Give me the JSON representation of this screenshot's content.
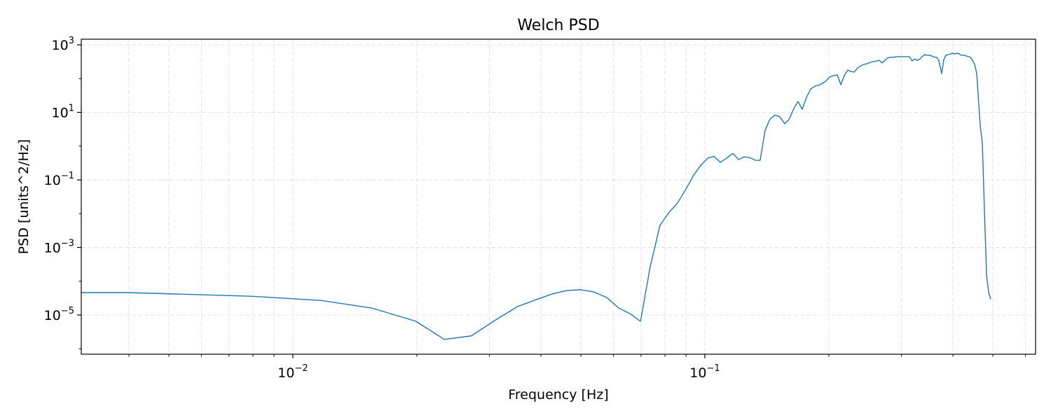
{
  "chart_data": {
    "type": "line",
    "title": "Welch PSD",
    "xlabel": "Frequency [Hz]",
    "ylabel": "PSD [units^2/Hz]",
    "xscale": "log",
    "yscale": "log",
    "grid": true,
    "color": "#1f77b4",
    "xlim": [
      0.003065,
      0.635
    ],
    "ylim": [
      6.9e-07,
      1466
    ],
    "xticks": [
      {
        "value": 0.01,
        "label": "10",
        "exponent": "−2"
      },
      {
        "value": 0.1,
        "label": "10",
        "exponent": "−1"
      }
    ],
    "xminorticks": [
      0.004,
      0.005,
      0.006,
      0.007,
      0.008,
      0.009,
      0.02,
      0.03,
      0.04,
      0.05,
      0.06,
      0.07,
      0.08,
      0.09,
      0.2,
      0.3,
      0.4,
      0.5,
      0.6
    ],
    "yticks": [
      {
        "value": 1e-05,
        "label": "10",
        "exponent": "−5"
      },
      {
        "value": 0.001,
        "label": "10",
        "exponent": "−3"
      },
      {
        "value": 0.1,
        "label": "10",
        "exponent": "−1"
      },
      {
        "value": 10,
        "label": "10",
        "exponent": "1"
      },
      {
        "value": 1000,
        "label": "10",
        "exponent": "3"
      }
    ],
    "yminorticks": [
      1e-06,
      0.0001,
      0.01,
      1,
      100
    ],
    "x": [
      0.003065,
      0.00397,
      0.0079,
      0.0117,
      0.01556,
      0.0199,
      0.0233,
      0.0271,
      0.0313,
      0.0352,
      0.0391,
      0.0426,
      0.0462,
      0.05,
      0.0538,
      0.0578,
      0.0618,
      0.0658,
      0.0698,
      0.0736,
      0.0778,
      0.0819,
      0.0859,
      0.09,
      0.094,
      0.0977,
      0.1016,
      0.1052,
      0.109,
      0.1129,
      0.117,
      0.1207,
      0.1245,
      0.1285,
      0.1326,
      0.1362,
      0.14,
      0.1439,
      0.148,
      0.152,
      0.1563,
      0.16,
      0.1644,
      0.1683,
      0.1723,
      0.1765,
      0.1807,
      0.185,
      0.1886,
      0.1931,
      0.1968,
      0.2007,
      0.2055,
      0.2097,
      0.2138,
      0.218,
      0.2223,
      0.2267,
      0.2303,
      0.2348,
      0.2395,
      0.2432,
      0.248,
      0.2519,
      0.2559,
      0.261,
      0.2651,
      0.2693,
      0.2735,
      0.2779,
      0.2823,
      0.2867,
      0.2912,
      0.2958,
      0.3005,
      0.3053,
      0.3089,
      0.3138,
      0.3187,
      0.3225,
      0.3276,
      0.3327,
      0.3367,
      0.342,
      0.346,
      0.3515,
      0.3556,
      0.3613,
      0.3655,
      0.3699,
      0.3757,
      0.3802,
      0.3846,
      0.3907,
      0.3954,
      0.4,
      0.4047,
      0.4095,
      0.4143,
      0.4194,
      0.4259,
      0.431,
      0.436,
      0.4413,
      0.4465,
      0.4518,
      0.457,
      0.4624,
      0.466,
      0.4716,
      0.477,
      0.483,
      0.4886,
      0.4943
    ],
    "values": [
      4.6e-05,
      4.6e-05,
      3.6e-05,
      2.7e-05,
      1.6e-05,
      6.5e-06,
      1.9e-06,
      2.4e-06,
      7.6e-06,
      1.8e-05,
      2.9e-05,
      4.2e-05,
      5.3e-05,
      5.6e-05,
      4.8e-05,
      3.3e-05,
      1.6e-05,
      1.1e-05,
      6.5e-06,
      0.00025,
      0.0045,
      0.011,
      0.021,
      0.054,
      0.14,
      0.27,
      0.44,
      0.5,
      0.33,
      0.44,
      0.61,
      0.4,
      0.48,
      0.46,
      0.38,
      0.38,
      2.9,
      6.3,
      8.3,
      7.4,
      4.6,
      6.1,
      12.9,
      21,
      12.3,
      28,
      49,
      60,
      63,
      73,
      84,
      112,
      123,
      129,
      66,
      123,
      178,
      162,
      155,
      207,
      240,
      263,
      277,
      302,
      316,
      331,
      347,
      289,
      347,
      407,
      427,
      427,
      447,
      447,
      447,
      447,
      447,
      447,
      331,
      380,
      347,
      380,
      447,
      513,
      490,
      490,
      467,
      427,
      427,
      331,
      141,
      366,
      490,
      513,
      537,
      563,
      537,
      563,
      537,
      490,
      490,
      467,
      447,
      427,
      347,
      263,
      141,
      16.6,
      4.0,
      1.2,
      0.013,
      0.00014,
      4.6e-05,
      2.9e-05
    ]
  }
}
